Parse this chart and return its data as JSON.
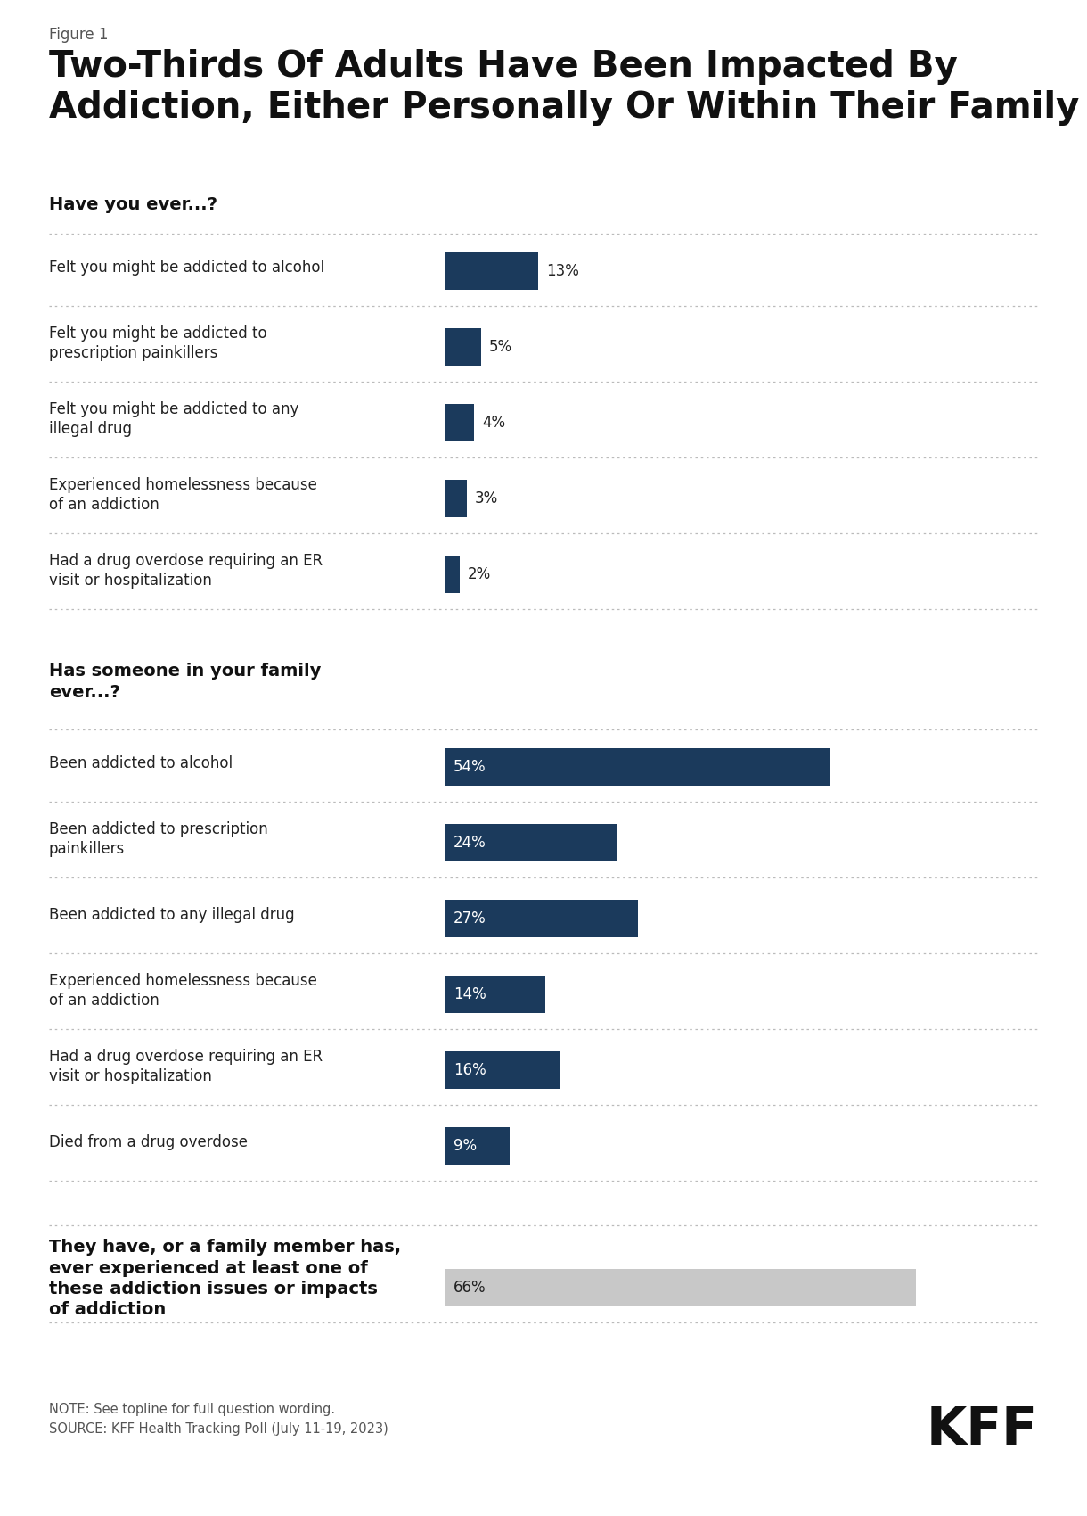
{
  "figure_label": "Figure 1",
  "title": "Two-Thirds Of Adults Have Been Impacted By\nAddiction, Either Personally Or Within Their Family",
  "section1_header": "Have you ever...?",
  "section1_items": [
    {
      "label": "Felt you might be addicted to alcohol",
      "value": 13
    },
    {
      "label": "Felt you might be addicted to\nprescription painkillers",
      "value": 5
    },
    {
      "label": "Felt you might be addicted to any\nillegal drug",
      "value": 4
    },
    {
      "label": "Experienced homelessness because\nof an addiction",
      "value": 3
    },
    {
      "label": "Had a drug overdose requiring an ER\nvisit or hospitalization",
      "value": 2
    }
  ],
  "section2_header": "Has someone in your family\never...?",
  "section2_items": [
    {
      "label": "Been addicted to alcohol",
      "value": 54
    },
    {
      "label": "Been addicted to prescription\npainkillers",
      "value": 24
    },
    {
      "label": "Been addicted to any illegal drug",
      "value": 27
    },
    {
      "label": "Experienced homelessness because\nof an addiction",
      "value": 14
    },
    {
      "label": "Had a drug overdose requiring an ER\nvisit or hospitalization",
      "value": 16
    },
    {
      "label": "Died from a drug overdose",
      "value": 9
    }
  ],
  "section3_header": "They have, or a family member has,\never experienced at least one of\nthese addiction issues or impacts\nof addiction",
  "section3_value": 66,
  "dark_blue": "#1B3A5C",
  "light_gray": "#C8C8C8",
  "bar_max": 70,
  "note_text": "NOTE: See topline for full question wording.\nSOURCE: KFF Health Tracking Poll (July 11-19, 2023)",
  "kff_text": "KFF",
  "bg_color": "#FFFFFF",
  "border_color": "#CCCCCC",
  "text_color": "#222222",
  "label_color": "#444444"
}
